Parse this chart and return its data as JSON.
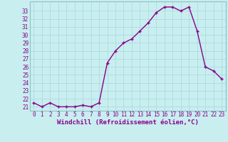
{
  "x": [
    0,
    1,
    2,
    3,
    4,
    5,
    6,
    7,
    8,
    9,
    10,
    11,
    12,
    13,
    14,
    15,
    16,
    17,
    18,
    19,
    20,
    21,
    22,
    23
  ],
  "y": [
    21.5,
    21.0,
    21.5,
    21.0,
    21.0,
    21.0,
    21.2,
    21.0,
    21.5,
    26.5,
    28.0,
    29.0,
    29.5,
    30.5,
    31.5,
    32.8,
    33.5,
    33.5,
    33.0,
    33.5,
    30.5,
    26.0,
    25.5,
    24.5
  ],
  "line_color": "#880088",
  "marker": "+",
  "markersize": 3,
  "linewidth": 1.0,
  "bg_color": "#c8eef0",
  "grid_color": "#a8d8da",
  "ylabel_ticks": [
    21,
    22,
    23,
    24,
    25,
    26,
    27,
    28,
    29,
    30,
    31,
    32,
    33
  ],
  "xlabel": "Windchill (Refroidissement éolien,°C)",
  "xlabel_color": "#880088",
  "xlabel_fontsize": 6.5,
  "tick_label_color": "#880088",
  "tick_label_fontsize": 5.5,
  "ylim": [
    20.5,
    34.2
  ],
  "xlim": [
    -0.5,
    23.5
  ]
}
